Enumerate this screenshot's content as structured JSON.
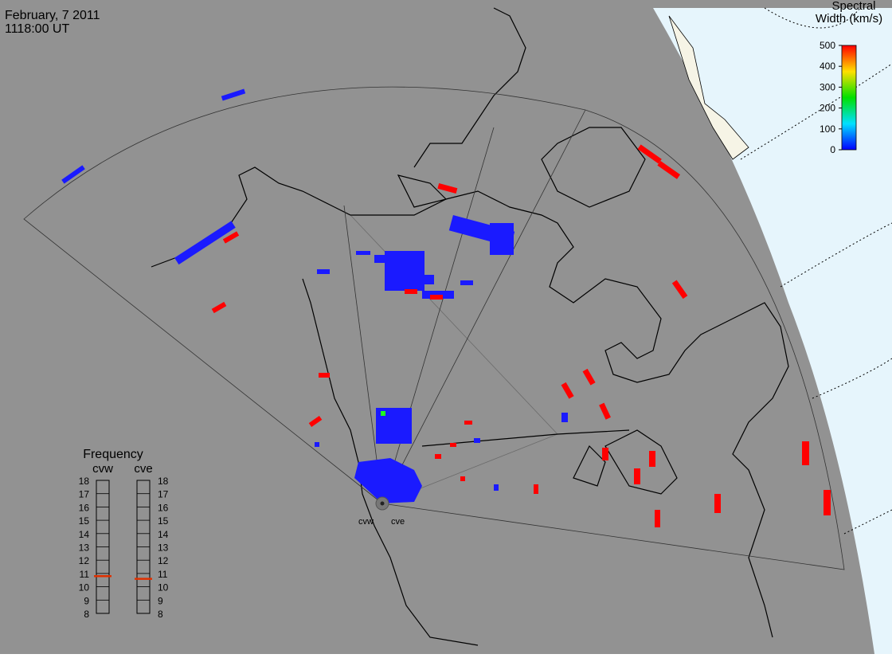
{
  "header": {
    "date": "February, 7 2011",
    "time": "1118:00 UT"
  },
  "colorbar": {
    "title": [
      "Spectral",
      "Width (km/s)"
    ],
    "range": [
      0,
      500
    ],
    "ticks": [
      0,
      100,
      200,
      300,
      400,
      500
    ],
    "colors": [
      "#0000ff",
      "#00e0ff",
      "#00e000",
      "#ffe000",
      "#ff0000"
    ]
  },
  "frequency": {
    "title": "Frequency",
    "range": [
      8,
      18
    ],
    "ticks": [
      8,
      9,
      10,
      11,
      12,
      13,
      14,
      15,
      16,
      17,
      18
    ],
    "radars": [
      {
        "name": "cvw",
        "value": 10.8
      },
      {
        "name": "cve",
        "value": 10.6
      }
    ],
    "indicator_color": "#e03000"
  },
  "stations": [
    "cvw",
    "cve"
  ]
}
